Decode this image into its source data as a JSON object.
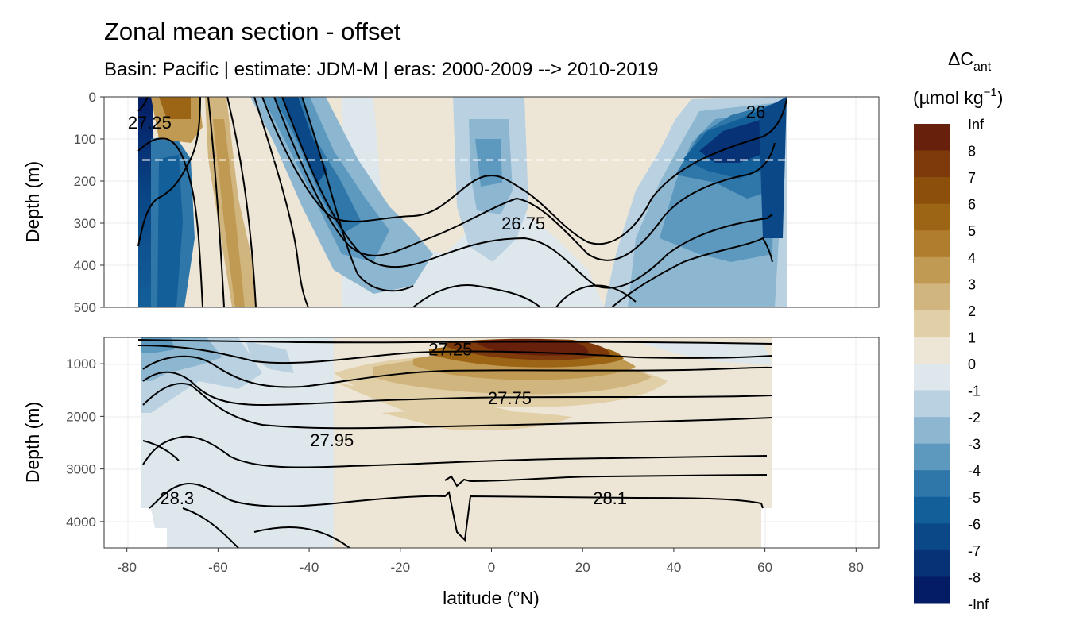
{
  "title": "Zonal mean section - offset",
  "subtitle": "Basin: Pacific | estimate: JDM-M | eras: 2000-2009 --> 2010-2019",
  "chart_data": {
    "type": "heatmap",
    "xlabel": "latitude (°N)",
    "x_ticks": [
      -80,
      -60,
      -40,
      -20,
      0,
      20,
      40,
      60,
      80
    ],
    "xlim": [
      -85,
      85
    ],
    "panels": [
      {
        "name": "upper",
        "ylabel": "Depth (m)",
        "ylim": [
          0,
          500
        ],
        "y_ticks": [
          0,
          100,
          200,
          300,
          400,
          500
        ],
        "reference_line_depth": 150,
        "contour_labels": [
          {
            "text": "27.25",
            "lat": -75,
            "depth": 60
          },
          {
            "text": "26",
            "lat": 58,
            "depth": 35
          },
          {
            "text": "26.75",
            "lat": 7,
            "depth": 300
          }
        ]
      },
      {
        "name": "lower",
        "ylabel": "Depth (m)",
        "ylim": [
          500,
          4500
        ],
        "y_ticks": [
          1000,
          2000,
          3000,
          4000
        ],
        "contour_labels": [
          {
            "text": "27.25",
            "lat": -9,
            "depth": 720
          },
          {
            "text": "27.75",
            "lat": 4,
            "depth": 1650
          },
          {
            "text": "27.95",
            "lat": -35,
            "depth": 2450
          },
          {
            "text": "28.3",
            "lat": -69,
            "depth": 3550
          },
          {
            "text": "28.1",
            "lat": 26,
            "depth": 3550
          }
        ]
      }
    ],
    "legend": {
      "title_main": "ΔC",
      "title_sub": "ant",
      "units_main": "(µmol kg",
      "units_sup": "−1",
      "units_end": ")",
      "breaks": [
        "Inf",
        "8",
        "7",
        "6",
        "5",
        "4",
        "3",
        "2",
        "1",
        "0",
        "-1",
        "-2",
        "-3",
        "-4",
        "-5",
        "-6",
        "-7",
        "-8",
        "-Inf"
      ],
      "colors": [
        "#67200c",
        "#7f3a0b",
        "#8c500c",
        "#9c6516",
        "#b07d2f",
        "#c09a52",
        "#d1b57e",
        "#e1cfa8",
        "#ede6d6",
        "#dde7ec",
        "#b9d1e1",
        "#8db7d1",
        "#5d98bf",
        "#2f76a9",
        "#135f99",
        "#0a4887",
        "#073275",
        "#041c64"
      ]
    }
  }
}
